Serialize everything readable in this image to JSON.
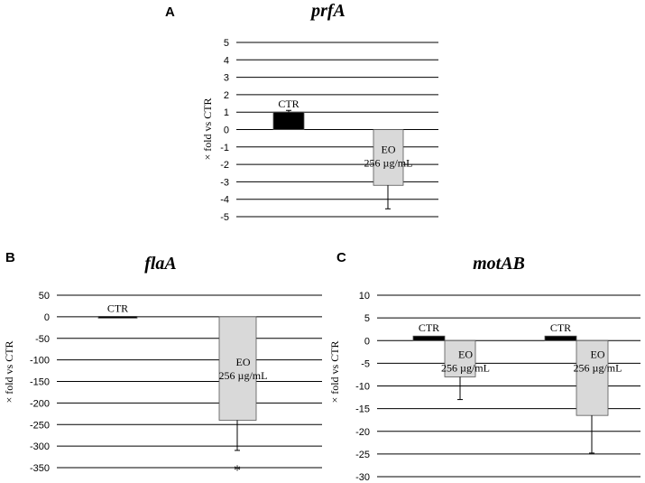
{
  "chart_data": [
    {
      "panel": "A",
      "type": "bar",
      "title": "prfA",
      "ylabel": "× fold vs CTR",
      "ylim": [
        -5,
        5
      ],
      "yticks": [
        "5",
        "4",
        "3",
        "2",
        "1",
        "0",
        "-1",
        "-2",
        "-3",
        "-4",
        "-5"
      ],
      "grid": true,
      "series": [
        {
          "label": "CTR",
          "value": 1.0,
          "error": 0.1,
          "color": "#000000"
        },
        {
          "label": "EO",
          "label2": "256 µg/mL",
          "value": -3.2,
          "error": 1.35,
          "color": "#d9d9d9"
        }
      ]
    },
    {
      "panel": "B",
      "type": "bar",
      "title": "flaA",
      "ylabel": "× fold vs CTR",
      "ylim": [
        -350,
        50
      ],
      "yticks": [
        "50",
        "0",
        "-50",
        "-100",
        "-150",
        "-200",
        "-250",
        "-300",
        "-350"
      ],
      "grid": true,
      "annotation": "*",
      "series": [
        {
          "label": "CTR",
          "value": 1.0,
          "error": 0,
          "color": "#000000"
        },
        {
          "label": "EO",
          "label2": "256 µg/mL",
          "value": -240,
          "error": 70,
          "color": "#d9d9d9"
        }
      ]
    },
    {
      "panel": "C",
      "type": "bar",
      "title": "motAB",
      "ylabel": "× fold vs CTR",
      "ylim": [
        -30,
        10
      ],
      "yticks": [
        "10",
        "5",
        "0",
        "-5",
        "-10",
        "-15",
        "-20",
        "-25",
        "-30"
      ],
      "grid": true,
      "groups": [
        [
          {
            "label": "CTR",
            "value": 1.0,
            "error": 0,
            "color": "#000000"
          },
          {
            "label": "EO",
            "label2": "256 µg/mL",
            "value": -8,
            "error": 5,
            "color": "#d9d9d9"
          }
        ],
        [
          {
            "label": "CTR",
            "value": 1.0,
            "error": 0,
            "color": "#000000"
          },
          {
            "label": "EO",
            "label2": "256 µg/mL",
            "value": -16.5,
            "error": 8.3,
            "color": "#d9d9d9"
          }
        ]
      ]
    }
  ]
}
